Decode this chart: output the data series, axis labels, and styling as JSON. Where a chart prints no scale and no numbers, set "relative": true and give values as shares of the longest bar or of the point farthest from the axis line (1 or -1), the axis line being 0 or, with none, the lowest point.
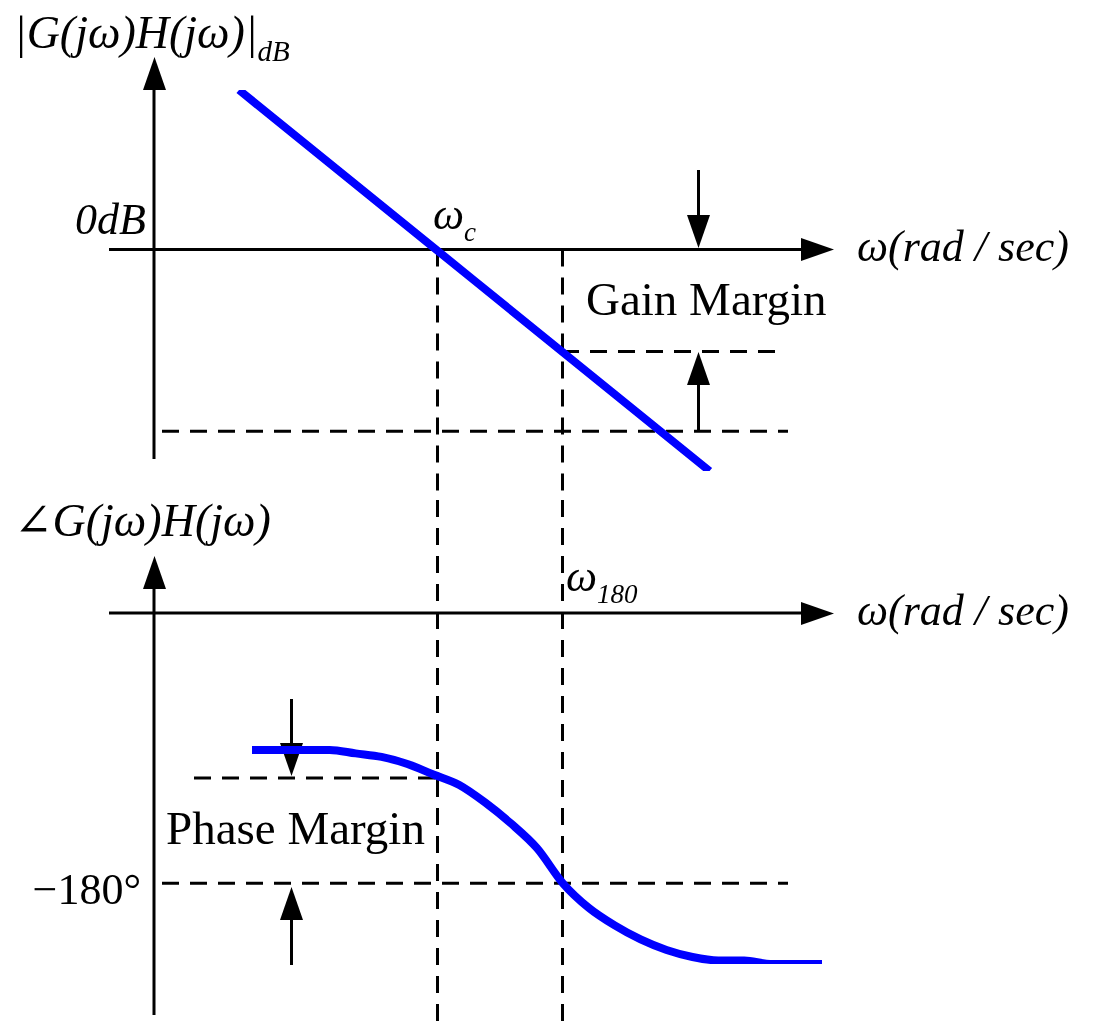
{
  "chart_data": [
    {
      "type": "line",
      "ylabel": "|G(jω)H(jω)|$_{dB}$",
      "xlabel": "ω(rad / sec)",
      "relative": true,
      "tick_labels": false,
      "marker": "none",
      "color": "#0000ff",
      "categories": [
        null,
        null
      ],
      "values": [
        0.72,
        -1
      ],
      "ref_lines": [
        {
          "axis": "y",
          "value": -0.46,
          "color": "#000000",
          "line_style": "dashed"
        },
        {
          "axis": "y",
          "value": -0.82,
          "color": "#000000",
          "line_style": "dashed"
        }
      ],
      "annotations": [
        "0dB",
        "ω$_{c}$",
        "Gain Margin"
      ]
    },
    {
      "type": "line",
      "ylabel": "∠G(jω)H(jω)",
      "xlabel": "ω(rad / sec)",
      "relative": true,
      "tick_labels": false,
      "marker": "none",
      "color": "#0000ff",
      "categories": [
        null,
        null,
        null,
        null,
        null,
        null,
        null,
        null,
        null,
        null,
        null,
        null,
        null,
        null,
        null,
        null,
        null,
        null,
        null,
        null,
        null,
        null,
        null
      ],
      "values": [
        -0.39,
        -0.39,
        -0.39,
        -0.39,
        -0.4,
        -0.41,
        -0.43,
        -0.46,
        -0.49,
        -0.54,
        -0.6,
        -0.67,
        -0.77,
        -0.84,
        -0.89,
        -0.93,
        -0.96,
        -0.98,
        -0.99,
        -0.99,
        -1,
        -1,
        -1
      ],
      "ref_lines": [
        {
          "axis": "y",
          "value": -0.77,
          "label": "−180°",
          "color": "#000000",
          "line_style": "dashed"
        },
        {
          "axis": "y",
          "value": -0.47,
          "color": "#000000",
          "line_style": "dashed"
        }
      ],
      "annotations": [
        "ω$_{180}$",
        "Phase Margin"
      ]
    }
  ]
}
